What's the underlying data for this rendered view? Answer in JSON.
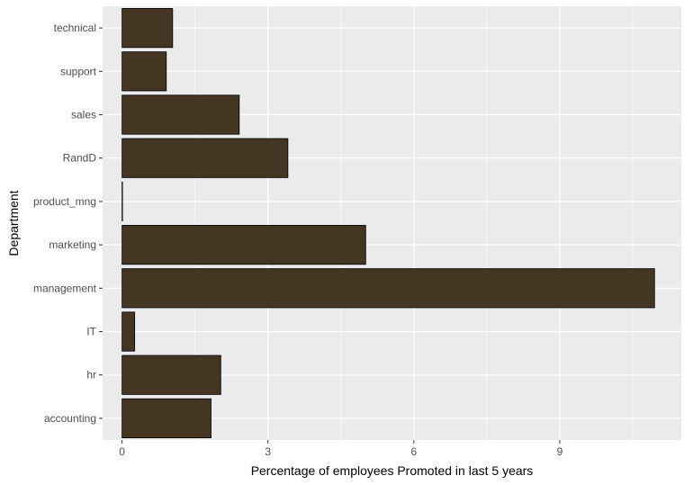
{
  "chart_data": {
    "type": "bar",
    "orientation": "horizontal",
    "xlabel": "Percentage of employees Promoted in last 5 years",
    "ylabel": "Department",
    "categories": [
      "accounting",
      "hr",
      "IT",
      "management",
      "marketing",
      "product_mng",
      "RandD",
      "sales",
      "support",
      "technical"
    ],
    "values": [
      1.83,
      2.03,
      0.26,
      10.95,
      5.01,
      0.0,
      3.41,
      2.41,
      0.91,
      1.04
    ],
    "xlim": [
      -0.4,
      11.5
    ],
    "xticks": [
      0,
      3,
      6,
      9
    ],
    "xtick_labels": [
      "0",
      "3",
      "6",
      "9"
    ],
    "grid": true,
    "legend": "none",
    "colors": {
      "bar_fill": "#453523",
      "bar_outline": "#000000",
      "panel_background": "#ebebeb",
      "grid_major": "#ffffff",
      "tick_text": "#4d4d4d"
    }
  }
}
